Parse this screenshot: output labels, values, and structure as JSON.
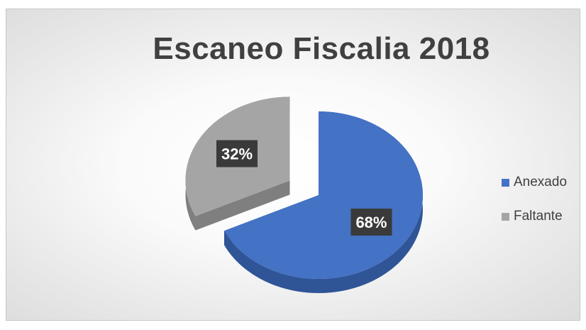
{
  "chart_data": {
    "type": "pie",
    "title": "Escaneo Fiscalia 2018",
    "slices": [
      {
        "name": "Anexado",
        "value": 68,
        "label": "68%",
        "color": "#4472C4",
        "side": "#2F5597",
        "exploded": false
      },
      {
        "name": "Faltante",
        "value": 32,
        "label": "32%",
        "color": "#A5A5A5",
        "side": "#7F7F7F",
        "exploded": true
      }
    ],
    "legend_position": "right",
    "style": "3d"
  }
}
